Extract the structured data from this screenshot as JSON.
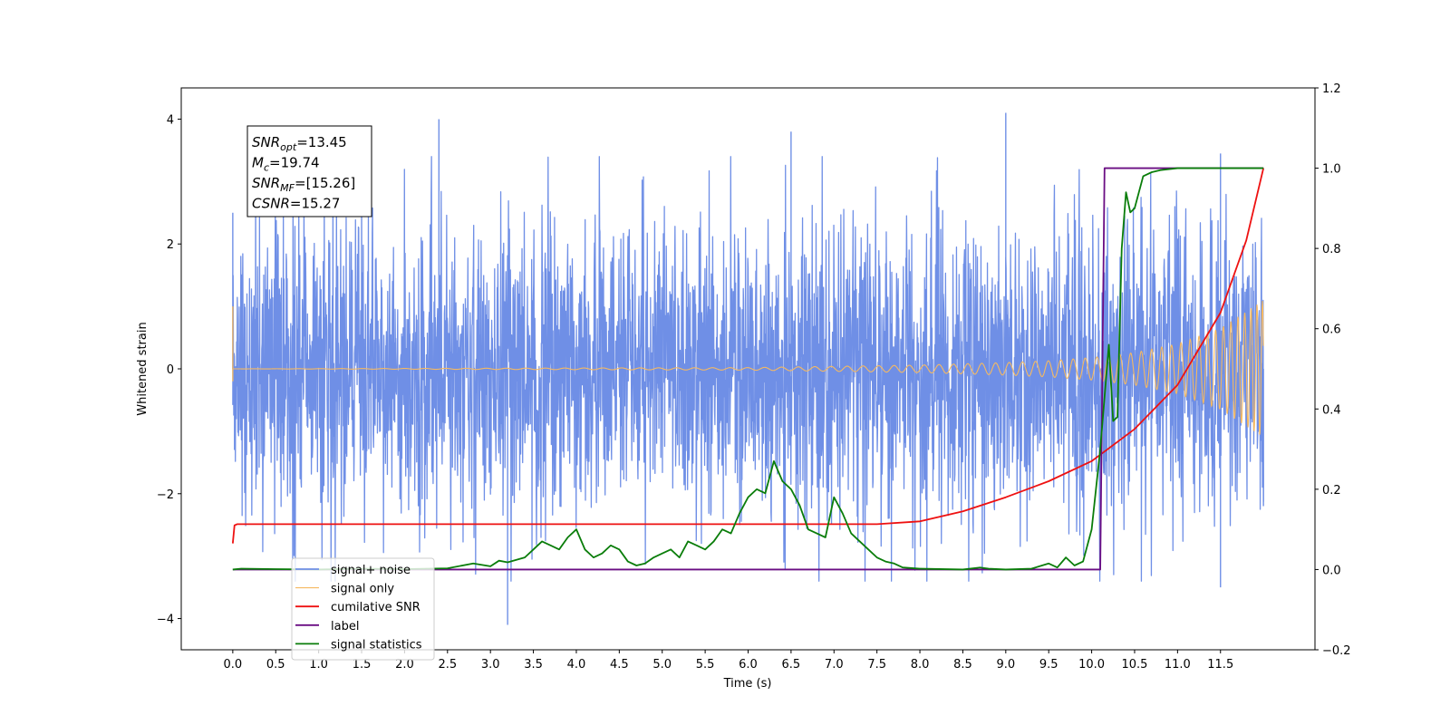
{
  "chart_data": {
    "type": "line",
    "title": "",
    "xlabel": "Time (s)",
    "ylabel": "Whitened strain",
    "y2label": "",
    "xlim": [
      -0.6,
      12.6
    ],
    "ylim": [
      -4.5,
      4.5
    ],
    "y2lim": [
      -0.2,
      1.2
    ],
    "x_ticks": [
      "0.0",
      "0.5",
      "1.0",
      "1.5",
      "2.0",
      "2.5",
      "3.0",
      "3.5",
      "4.0",
      "4.5",
      "5.0",
      "5.5",
      "6.0",
      "6.5",
      "7.0",
      "7.5",
      "8.0",
      "8.5",
      "9.0",
      "9.5",
      "10.0",
      "10.5",
      "11.0",
      "11.5"
    ],
    "y_ticks": [
      "4",
      "2",
      "0",
      "−2",
      "−4"
    ],
    "y2_ticks": [
      "1.2",
      "1.0",
      "0.8",
      "0.6",
      "0.4",
      "0.2",
      "0.0",
      "−0.2"
    ],
    "grid": false,
    "legend_position": "lower-left",
    "annotation": {
      "lines": [
        {
          "var": "SNR",
          "sub": "opt",
          "value": "=13.45"
        },
        {
          "var": "M",
          "sub": "c",
          "value": "=19.74"
        },
        {
          "var": "SNR",
          "sub": "MF",
          "value": "=[15.26]"
        },
        {
          "var": "CSNR",
          "sub": "",
          "value": "=15.27"
        }
      ]
    },
    "series": [
      {
        "name": "signal+ noise",
        "color": "#6f8fe6",
        "axis": "left",
        "kind": "noise",
        "x_range": [
          0.0,
          12.0
        ],
        "typical_amplitude": 1.9,
        "peaks": [
          [
            0.0,
            2.5
          ],
          [
            0.02,
            -1.3
          ],
          [
            2.4,
            4.0
          ],
          [
            3.2,
            -4.1
          ],
          [
            6.5,
            3.8
          ],
          [
            9.0,
            4.1
          ],
          [
            11.5,
            3.45
          ],
          [
            11.5,
            -3.5
          ],
          [
            12.0,
            -2.2
          ]
        ]
      },
      {
        "name": "signal only",
        "color": "#f5b961",
        "axis": "left",
        "kind": "chirp",
        "x": [
          0.0,
          6.0,
          7.0,
          8.0,
          9.0,
          9.5,
          10.0,
          10.5,
          11.0,
          11.5,
          12.0
        ],
        "envelope": [
          0.0,
          0.02,
          0.04,
          0.06,
          0.1,
          0.13,
          0.18,
          0.26,
          0.4,
          0.65,
          1.1
        ]
      },
      {
        "name": "cumilative SNR",
        "color": "#ee1111",
        "axis": "right",
        "x": [
          0.0,
          0.02,
          0.05,
          7.5,
          8.0,
          8.5,
          9.0,
          9.5,
          10.0,
          10.5,
          11.0,
          11.5,
          11.8,
          12.0
        ],
        "y": [
          0.065,
          0.11,
          0.113,
          0.113,
          0.12,
          0.145,
          0.18,
          0.22,
          0.27,
          0.35,
          0.46,
          0.64,
          0.82,
          1.0
        ]
      },
      {
        "name": "label",
        "color": "#6a0d83",
        "axis": "right",
        "x": [
          0.0,
          10.1,
          10.15,
          12.0
        ],
        "y": [
          0.0,
          0.0,
          1.0,
          1.0
        ]
      },
      {
        "name": "signal statistics",
        "color": "#0a7d0a",
        "axis": "right",
        "x": [
          0.0,
          0.1,
          0.5,
          1.0,
          1.5,
          2.0,
          2.5,
          2.8,
          3.0,
          3.1,
          3.2,
          3.4,
          3.5,
          3.6,
          3.7,
          3.8,
          3.9,
          4.0,
          4.1,
          4.2,
          4.3,
          4.4,
          4.5,
          4.6,
          4.7,
          4.8,
          4.9,
          5.0,
          5.1,
          5.2,
          5.3,
          5.4,
          5.5,
          5.6,
          5.7,
          5.8,
          5.9,
          6.0,
          6.1,
          6.2,
          6.3,
          6.4,
          6.5,
          6.6,
          6.7,
          6.8,
          6.9,
          7.0,
          7.1,
          7.2,
          7.3,
          7.4,
          7.5,
          7.6,
          7.7,
          7.8,
          8.0,
          8.5,
          8.7,
          8.8,
          9.0,
          9.3,
          9.5,
          9.6,
          9.7,
          9.8,
          9.9,
          10.0,
          10.1,
          10.2,
          10.25,
          10.3,
          10.35,
          10.4,
          10.45,
          10.5,
          10.6,
          10.7,
          10.8,
          11.0,
          11.5,
          12.0
        ],
        "y": [
          0.0,
          0.002,
          0.001,
          0.0,
          0.002,
          0.001,
          0.003,
          0.015,
          0.008,
          0.022,
          0.018,
          0.03,
          0.05,
          0.07,
          0.06,
          0.05,
          0.08,
          0.1,
          0.05,
          0.03,
          0.04,
          0.06,
          0.05,
          0.02,
          0.01,
          0.015,
          0.03,
          0.04,
          0.05,
          0.03,
          0.07,
          0.06,
          0.05,
          0.07,
          0.1,
          0.09,
          0.14,
          0.18,
          0.2,
          0.19,
          0.27,
          0.22,
          0.2,
          0.16,
          0.1,
          0.09,
          0.08,
          0.18,
          0.14,
          0.09,
          0.07,
          0.05,
          0.03,
          0.02,
          0.015,
          0.005,
          0.002,
          0.0,
          0.005,
          0.002,
          0.0,
          0.002,
          0.015,
          0.005,
          0.03,
          0.01,
          0.02,
          0.1,
          0.3,
          0.56,
          0.37,
          0.38,
          0.8,
          0.94,
          0.89,
          0.9,
          0.98,
          0.99,
          0.995,
          1.0,
          1.0,
          1.0
        ]
      }
    ]
  }
}
